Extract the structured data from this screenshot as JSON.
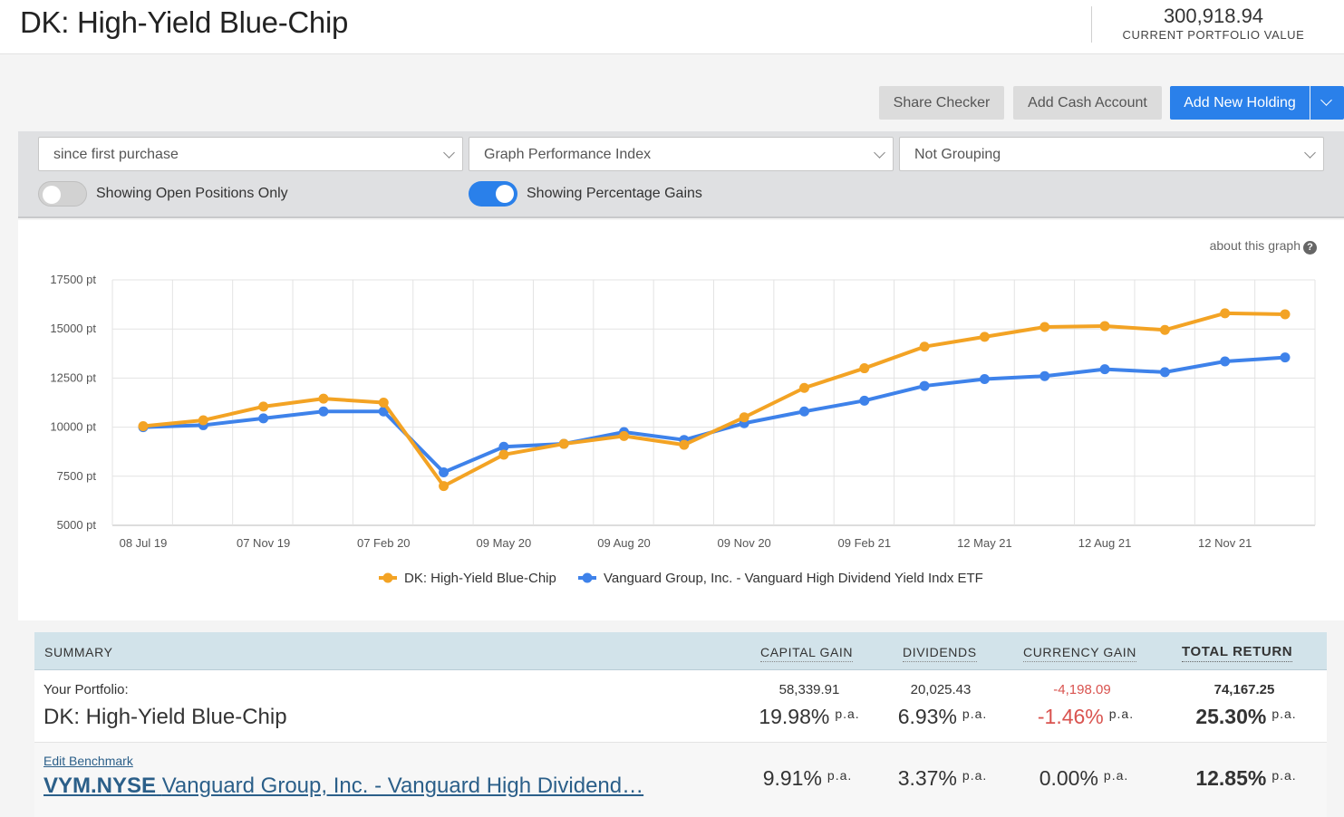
{
  "header": {
    "title": "DK: High-Yield Blue-Chip",
    "portfolio_value": "300,918.94",
    "portfolio_value_label": "CURRENT PORTFOLIO VALUE"
  },
  "actions": {
    "share_checker": "Share Checker",
    "add_cash_account": "Add Cash Account",
    "add_new_holding": "Add New Holding"
  },
  "filters": {
    "period": "since first purchase",
    "graph_type": "Graph Performance Index",
    "grouping": "Not Grouping",
    "open_positions_label": "Showing Open Positions Only",
    "open_positions_on": false,
    "percentage_gains_label": "Showing Percentage Gains",
    "percentage_gains_on": true
  },
  "about_graph": "about this graph",
  "chart_data": {
    "type": "line",
    "y_ticks": [
      "5000 pt",
      "7500 pt",
      "10000 pt",
      "12500 pt",
      "15000 pt",
      "17500 pt"
    ],
    "y_tick_values": [
      5000,
      7500,
      10000,
      12500,
      15000,
      17500
    ],
    "ylim": [
      5000,
      17500
    ],
    "x_ticks": [
      "08 Jul 19",
      "07 Nov 19",
      "07 Feb 20",
      "09 May 20",
      "09 Aug 20",
      "09 Nov 20",
      "09 Feb 21",
      "12 May 21",
      "12 Aug 21",
      "12 Nov 21"
    ],
    "x": [
      "08 Jul 19",
      "07 Sep 19",
      "07 Nov 19",
      "07 Jan 20",
      "07 Mar 20",
      "07 Apr 20",
      "09 May 20",
      "09 Jul 20",
      "09 Aug 20",
      "09 Oct 20",
      "09 Nov 20",
      "09 Jan 21",
      "09 Feb 21",
      "09 Apr 21",
      "12 May 21",
      "12 Jul 21",
      "12 Aug 21",
      "12 Oct 21",
      "12 Nov 21",
      "12 Jan 22"
    ],
    "series": [
      {
        "name": "DK: High-Yield Blue-Chip",
        "color": "#f3a324",
        "values": [
          10050,
          10350,
          11050,
          11450,
          11250,
          7000,
          8600,
          9150,
          9550,
          9100,
          10500,
          12000,
          13000,
          14100,
          14600,
          15100,
          15150,
          14950,
          15800,
          15750
        ]
      },
      {
        "name": "Vanguard Group, Inc. - Vanguard High Dividend Yield Indx ETF",
        "color": "#3e82ea",
        "values": [
          10000,
          10100,
          10450,
          10800,
          10800,
          7700,
          9000,
          9150,
          9750,
          9350,
          10200,
          10800,
          11350,
          12100,
          12450,
          12600,
          12950,
          12800,
          13350,
          13550
        ]
      }
    ],
    "grid": true,
    "legend": "bottom"
  },
  "summary": {
    "headers": {
      "summary": "SUMMARY",
      "capital_gain": "CAPITAL GAIN",
      "dividends": "DIVIDENDS",
      "currency_gain": "CURRENCY GAIN",
      "total_return": "TOTAL RETURN"
    },
    "portfolio": {
      "label_small": "Your Portfolio:",
      "name": "DK: High-Yield Blue-Chip",
      "capital_gain_value": "58,339.91",
      "capital_gain_pct": "19.98%",
      "dividends_value": "20,025.43",
      "dividends_pct": "6.93%",
      "currency_gain_value": "-4,198.09",
      "currency_gain_pct": "-1.46%",
      "total_return_value": "74,167.25",
      "total_return_pct": "25.30%"
    },
    "benchmark": {
      "edit_label": "Edit Benchmark",
      "ticker": "VYM.NYSE",
      "name": "Vanguard Group, Inc. - Vanguard High Dividend…",
      "capital_gain_pct": "9.91%",
      "dividends_pct": "3.37%",
      "currency_gain_pct": "0.00%",
      "total_return_pct": "12.85%"
    },
    "pa": "p.a."
  }
}
